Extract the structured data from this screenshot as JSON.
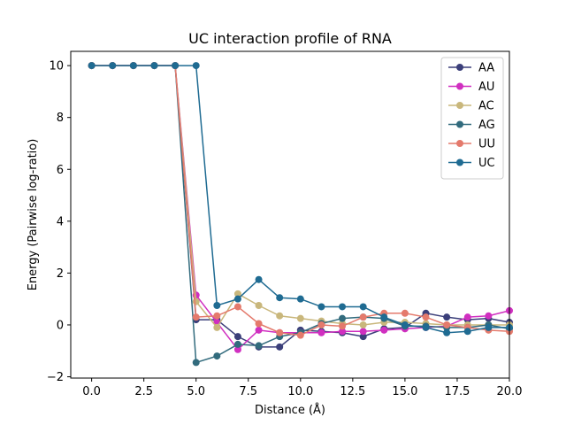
{
  "chart_data": {
    "type": "line",
    "title": "UC interaction profile of  RNA",
    "xlabel": "Distance (Å)",
    "ylabel": "Energy (Pairwise log-ratio)",
    "xlim": [
      -1,
      20
    ],
    "ylim": [
      -2.05,
      10.55
    ],
    "xticks": [
      0.0,
      2.5,
      5.0,
      7.5,
      10.0,
      12.5,
      15.0,
      17.5,
      20.0
    ],
    "xtick_labels": [
      "0.0",
      "2.5",
      "5.0",
      "7.5",
      "10.0",
      "12.5",
      "15.0",
      "17.5",
      "20.0"
    ],
    "yticks": [
      -2,
      0,
      2,
      4,
      6,
      8,
      10
    ],
    "ytick_labels": [
      "−2",
      "0",
      "2",
      "4",
      "6",
      "8",
      "10"
    ],
    "grid": false,
    "legend_position": "top-right",
    "x": [
      0,
      1,
      2,
      3,
      4,
      5,
      6,
      7,
      8,
      9,
      10,
      11,
      12,
      13,
      14,
      15,
      16,
      17,
      18,
      19,
      20
    ],
    "series": [
      {
        "name": "AA",
        "color": "#3b3f7a",
        "values": [
          10,
          10,
          10,
          10,
          10,
          0.2,
          0.2,
          -0.45,
          -0.85,
          -0.85,
          -0.2,
          -0.25,
          -0.3,
          -0.45,
          -0.15,
          -0.1,
          0.45,
          0.3,
          0.2,
          0.25,
          0.1
        ]
      },
      {
        "name": "AU",
        "color": "#d02fc0",
        "values": [
          10,
          10,
          10,
          10,
          10,
          1.15,
          0.1,
          -0.95,
          -0.2,
          -0.3,
          -0.3,
          -0.3,
          -0.25,
          -0.25,
          -0.2,
          -0.15,
          -0.1,
          -0.05,
          0.3,
          0.35,
          0.55
        ]
      },
      {
        "name": "AC",
        "color": "#c9b77c",
        "values": [
          10,
          10,
          10,
          10,
          10,
          0.9,
          -0.1,
          1.2,
          0.75,
          0.35,
          0.25,
          0.15,
          0.05,
          0.0,
          0.1,
          0.1,
          0.05,
          0.0,
          0.0,
          0.0,
          0.0
        ]
      },
      {
        "name": "AG",
        "color": "#326b7d",
        "values": [
          10,
          10,
          10,
          10,
          10,
          -1.45,
          -1.2,
          -0.75,
          -0.8,
          -0.45,
          -0.3,
          0.05,
          0.25,
          0.3,
          0.25,
          -0.05,
          -0.05,
          -0.1,
          -0.1,
          0.0,
          -0.15
        ]
      },
      {
        "name": "UU",
        "color": "#e47a6c",
        "values": [
          10,
          10,
          10,
          10,
          10,
          0.3,
          0.35,
          0.7,
          0.05,
          -0.3,
          -0.4,
          0.0,
          -0.05,
          0.3,
          0.45,
          0.45,
          0.3,
          0.0,
          -0.1,
          -0.2,
          -0.25
        ]
      },
      {
        "name": "UC",
        "color": "#1f6b92",
        "values": [
          10,
          10,
          10,
          10,
          10,
          10,
          0.75,
          1.0,
          1.75,
          1.05,
          1.0,
          0.7,
          0.7,
          0.7,
          0.3,
          0.0,
          -0.1,
          -0.3,
          -0.25,
          -0.1,
          -0.1
        ]
      }
    ]
  }
}
